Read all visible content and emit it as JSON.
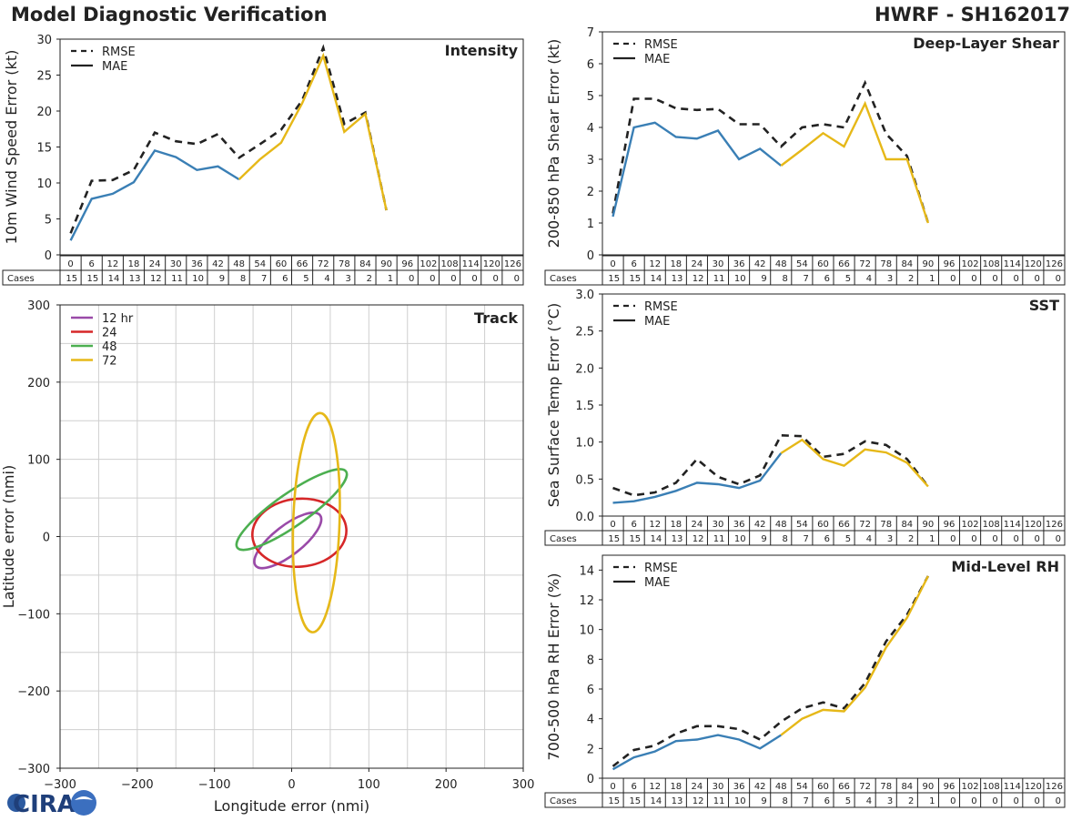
{
  "header": {
    "title": "Model Diagnostic Verification",
    "storm": "HWRF - SH162017"
  },
  "logo_text": "CIRA",
  "colors": {
    "mae": "#3a7fb5",
    "mae_late": "#e6b818",
    "rmse": "#222222",
    "r12": "#9a4aa8",
    "r24": "#d62728",
    "r48": "#4caf50",
    "r72": "#e6b818"
  },
  "legend": {
    "rmse": "RMSE",
    "mae": "MAE"
  },
  "table": {
    "cases_label": "Cases",
    "hours": [
      0,
      6,
      12,
      18,
      24,
      30,
      36,
      42,
      48,
      54,
      60,
      66,
      72,
      78,
      84,
      90,
      96,
      102,
      108,
      114,
      120,
      126
    ],
    "cases": [
      15,
      15,
      14,
      13,
      12,
      11,
      10,
      9,
      8,
      7,
      6,
      5,
      4,
      3,
      2,
      1,
      0,
      0,
      0,
      0,
      0,
      0
    ]
  },
  "chart_data": [
    {
      "id": "intensity",
      "type": "line",
      "title": "Intensity",
      "ylabel": "10m Wind Speed Error (kt)",
      "ylim": [
        0,
        30
      ],
      "yticks": [
        0,
        5,
        10,
        15,
        20,
        25,
        30
      ],
      "x": [
        0,
        6,
        12,
        18,
        24,
        30,
        36,
        42,
        48,
        54,
        60,
        66,
        72,
        78,
        84,
        90
      ],
      "series": [
        {
          "name": "RMSE",
          "values": [
            3,
            10.3,
            10.4,
            11.8,
            17,
            15.8,
            15.4,
            16.8,
            13.5,
            15.4,
            17.4,
            21.5,
            28.8,
            18.2,
            19.8,
            6.2
          ]
        },
        {
          "name": "MAE",
          "values": [
            2,
            7.8,
            8.5,
            10.1,
            14.5,
            13.6,
            11.8,
            12.3,
            10.5,
            13.3,
            15.6,
            21.1,
            27.7,
            17.1,
            19.6,
            6.2
          ]
        }
      ]
    },
    {
      "id": "shear",
      "type": "line",
      "title": "Deep-Layer Shear",
      "ylabel": "200-850 hPa Shear Error (kt)",
      "ylim": [
        0,
        7
      ],
      "yticks": [
        0,
        1,
        2,
        3,
        4,
        5,
        6,
        7
      ],
      "x": [
        0,
        6,
        12,
        18,
        24,
        30,
        36,
        42,
        48,
        54,
        60,
        66,
        72,
        78,
        84,
        90
      ],
      "series": [
        {
          "name": "RMSE",
          "values": [
            1.3,
            4.9,
            4.9,
            4.6,
            4.55,
            4.58,
            4.1,
            4.1,
            3.4,
            4,
            4.1,
            4,
            5.4,
            3.8,
            3.1,
            1
          ]
        },
        {
          "name": "MAE",
          "values": [
            1.2,
            4,
            4.15,
            3.7,
            3.65,
            3.9,
            3,
            3.33,
            2.8,
            3.3,
            3.82,
            3.4,
            4.75,
            3,
            3,
            1
          ]
        }
      ]
    },
    {
      "id": "sst",
      "type": "line",
      "title": "SST",
      "ylabel": "Sea Surface Temp Error (°C)",
      "ylim": [
        0,
        3
      ],
      "yticks": [
        "0.0",
        "0.5",
        "1.0",
        "1.5",
        "2.0",
        "2.5",
        "3.0"
      ],
      "x": [
        0,
        6,
        12,
        18,
        24,
        30,
        36,
        42,
        48,
        54,
        60,
        66,
        72,
        78,
        84,
        90
      ],
      "series": [
        {
          "name": "RMSE",
          "values": [
            0.38,
            0.28,
            0.32,
            0.45,
            0.77,
            0.53,
            0.43,
            0.55,
            1.09,
            1.08,
            0.8,
            0.84,
            1.01,
            0.96,
            0.77,
            0.4
          ]
        },
        {
          "name": "MAE",
          "values": [
            0.18,
            0.2,
            0.26,
            0.34,
            0.45,
            0.43,
            0.38,
            0.48,
            0.85,
            1.03,
            0.77,
            0.68,
            0.9,
            0.86,
            0.72,
            0.4
          ]
        }
      ]
    },
    {
      "id": "rh",
      "type": "line",
      "title": "Mid-Level RH",
      "ylabel": "700-500 hPa RH Error (%)",
      "ylim": [
        0,
        15
      ],
      "yticks": [
        0,
        2,
        4,
        6,
        8,
        10,
        12,
        14
      ],
      "x": [
        0,
        6,
        12,
        18,
        24,
        30,
        36,
        42,
        48,
        54,
        60,
        66,
        72,
        78,
        84,
        90
      ],
      "series": [
        {
          "name": "RMSE",
          "values": [
            0.8,
            1.9,
            2.2,
            3,
            3.5,
            3.5,
            3.3,
            2.6,
            3.8,
            4.7,
            5.1,
            4.7,
            6.4,
            9.2,
            11,
            13.6
          ]
        },
        {
          "name": "MAE",
          "values": [
            0.6,
            1.4,
            1.8,
            2.5,
            2.6,
            2.9,
            2.6,
            2,
            2.9,
            4,
            4.6,
            4.5,
            6.1,
            8.8,
            10.8,
            13.6
          ]
        }
      ]
    },
    {
      "id": "track",
      "type": "scatter",
      "title": "Track",
      "xlabel": "Longitude error (nmi)",
      "ylabel": "Latitude error (nmi)",
      "xlim": [
        -300,
        300
      ],
      "ylim": [
        -300,
        300
      ],
      "ticks": [
        -300,
        -200,
        -100,
        0,
        100,
        200,
        300
      ],
      "ellipses": [
        {
          "name": "12 hr",
          "cx": -5,
          "cy": -5,
          "rx": 53,
          "ry": 19,
          "angle": 38
        },
        {
          "name": "24",
          "cx": 10,
          "cy": 5,
          "rx": 61,
          "ry": 44,
          "angle": 5
        },
        {
          "name": "48",
          "cx": 0,
          "cy": 35,
          "rx": 86,
          "ry": 21,
          "angle": 35
        },
        {
          "name": "72",
          "cx": 32,
          "cy": 18,
          "rx": 30,
          "ry": 142,
          "angle": -2
        }
      ]
    }
  ]
}
